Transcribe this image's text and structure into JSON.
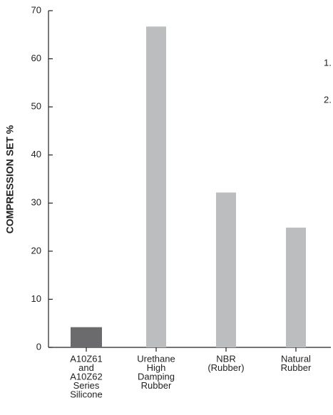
{
  "chart_data": {
    "type": "bar",
    "ylabel": "COMPRESSION SET  %",
    "categories": [
      [
        "A10Z61",
        "and",
        "A10Z62",
        "Series",
        "Silicone"
      ],
      [
        "Urethane",
        "High",
        "Damping",
        "Rubber"
      ],
      [
        "NBR",
        "(Rubber)"
      ],
      [
        "Natural",
        "Rubber"
      ]
    ],
    "values": [
      4.2,
      66.7,
      32.2,
      24.9
    ],
    "colors": [
      "#6b6b6d",
      "#bcbdbf",
      "#bcbdbf",
      "#bcbdbf"
    ],
    "ylim": [
      0,
      70
    ],
    "yticks": [
      0,
      10,
      20,
      30,
      40,
      50,
      60,
      70
    ],
    "annotations": [
      "1.",
      "2."
    ]
  }
}
